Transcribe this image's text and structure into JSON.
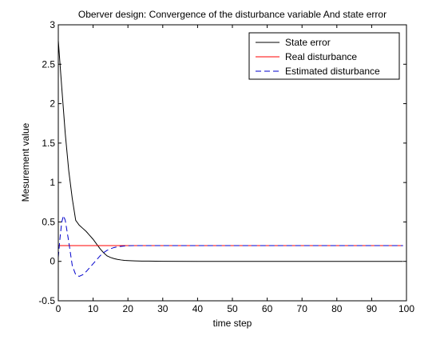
{
  "chart_data": {
    "type": "line",
    "title": "Oberver design: Convergence of the disturbance variable And state error",
    "xlabel": "time step",
    "ylabel": "Mesurement value",
    "xlim": [
      0,
      100
    ],
    "ylim": [
      -0.5,
      3
    ],
    "xticks": [
      0,
      10,
      20,
      30,
      40,
      50,
      60,
      70,
      80,
      90,
      100
    ],
    "yticks": [
      -0.5,
      0,
      0.5,
      1,
      1.5,
      2,
      2.5,
      3
    ],
    "xtick_labels": [
      "0",
      "10",
      "20",
      "30",
      "40",
      "50",
      "60",
      "70",
      "80",
      "90",
      "100"
    ],
    "ytick_labels": [
      "-0.5",
      "0",
      "0.5",
      "1",
      "1.5",
      "2",
      "2.5",
      "3"
    ],
    "grid": false,
    "legend_position": "top-right",
    "series": [
      {
        "name": "State error",
        "color": "#000000",
        "style": "solid",
        "x": [
          0,
          1,
          2,
          3,
          4,
          5,
          6,
          7,
          8,
          9,
          10,
          11,
          12,
          13,
          14,
          15,
          16,
          17,
          18,
          19,
          20,
          22,
          24,
          26,
          28,
          30,
          40,
          50,
          60,
          70,
          80,
          90,
          99
        ],
        "y": [
          2.8,
          2.2,
          1.62,
          1.15,
          0.8,
          0.52,
          0.46,
          0.42,
          0.38,
          0.33,
          0.28,
          0.22,
          0.16,
          0.11,
          0.07,
          0.05,
          0.035,
          0.025,
          0.018,
          0.012,
          0.01,
          0.006,
          0.004,
          0.003,
          0.002,
          0.001,
          0,
          0,
          0,
          0,
          0,
          0,
          0
        ]
      },
      {
        "name": "Real disturbance",
        "color": "#ff0000",
        "style": "solid",
        "x": [
          0,
          99
        ],
        "y": [
          0.2,
          0.2
        ]
      },
      {
        "name": "Estimated disturbance",
        "color": "#0000cc",
        "style": "dashed",
        "x": [
          0,
          0.5,
          1,
          1.5,
          2,
          3,
          4,
          5,
          6,
          7,
          8,
          9,
          10,
          11,
          12,
          13,
          14,
          15,
          16,
          17,
          18,
          19,
          20,
          22,
          24,
          26,
          99
        ],
        "y": [
          0.05,
          0.3,
          0.5,
          0.58,
          0.52,
          0.25,
          -0.05,
          -0.17,
          -0.19,
          -0.17,
          -0.13,
          -0.08,
          -0.03,
          0.02,
          0.07,
          0.11,
          0.14,
          0.16,
          0.175,
          0.185,
          0.19,
          0.195,
          0.198,
          0.2,
          0.2,
          0.2,
          0.2
        ]
      }
    ]
  }
}
